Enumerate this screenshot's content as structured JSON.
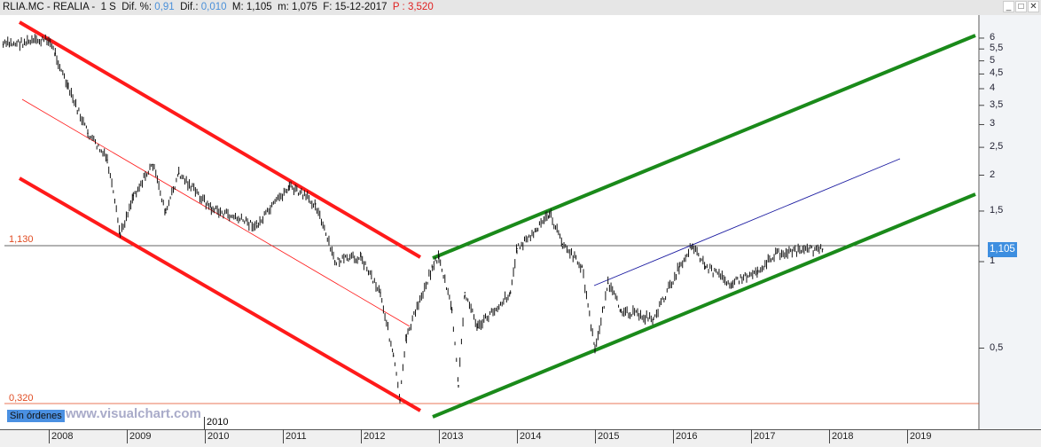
{
  "header": {
    "symbol": "RLIA.MC - REALIA -",
    "period": "1 S",
    "dif_pct_label": "Dif. %:",
    "dif_pct": "0,91",
    "dif_label": "Dif.:",
    "dif": "0,010",
    "max_label": "M:",
    "max": "1,105",
    "min_label": "m:",
    "min": "1,075",
    "date_label": "F:",
    "date": "15-12-2017",
    "p_label": "P :",
    "p": "3,520"
  },
  "window_buttons": {
    "minimize": "_",
    "maximize": "□",
    "close": "✕"
  },
  "levels": {
    "upper": "1,130",
    "lower": "0,320"
  },
  "last_price": "1,105",
  "status": {
    "orders": "Sin órdenes",
    "watermark": "www.visualchart.com",
    "stray_label": "2010"
  },
  "colors": {
    "up_channel": "#1a8a1a",
    "down_channel": "#ff1a1a",
    "blue_line": "#1a1aa0",
    "level_line": "#e04a20",
    "price_box": "#3d8ee0"
  },
  "chart_data": {
    "type": "line",
    "scale": "log",
    "y_ticks": [
      "6",
      "5,5",
      "5",
      "4,5",
      "4",
      "3,5",
      "3",
      "2,5",
      "2",
      "1,5",
      "1",
      "0,5"
    ],
    "x_ticks": [
      "2008",
      "2009",
      "2010",
      "2011",
      "2012",
      "2013",
      "2014",
      "2015",
      "2016",
      "2017",
      "2018",
      "2019"
    ],
    "series": [
      {
        "values": [
          [
            "2007-06",
            5.7
          ],
          [
            "2008-01",
            5.9
          ],
          [
            "2008-02",
            5.3
          ],
          [
            "2008-04",
            4.0
          ],
          [
            "2008-07",
            2.8
          ],
          [
            "2008-10",
            2.26
          ],
          [
            "2008-12",
            1.24
          ],
          [
            "2009-02",
            1.7
          ],
          [
            "2009-05",
            2.18
          ],
          [
            "2009-07",
            1.48
          ],
          [
            "2009-09",
            2.03
          ],
          [
            "2010-02",
            1.53
          ],
          [
            "2010-09",
            1.33
          ],
          [
            "2011-02",
            1.83
          ],
          [
            "2011-06",
            1.59
          ],
          [
            "2011-09",
            1.0
          ],
          [
            "2012-01",
            1.04
          ],
          [
            "2012-04",
            0.78
          ],
          [
            "2012-06",
            0.47
          ],
          [
            "2012-07",
            0.33
          ],
          [
            "2012-08",
            0.55
          ],
          [
            "2012-12",
            0.96
          ],
          [
            "2013-01",
            1.04
          ],
          [
            "2013-03",
            0.68
          ],
          [
            "2013-04",
            0.37
          ],
          [
            "2013-05",
            0.78
          ],
          [
            "2013-07",
            0.59
          ],
          [
            "2013-12",
            0.78
          ],
          [
            "2014-01",
            1.11
          ],
          [
            "2014-04",
            1.28
          ],
          [
            "2014-06",
            1.48
          ],
          [
            "2014-08",
            1.15
          ],
          [
            "2014-11",
            0.96
          ],
          [
            "2015-01",
            0.49
          ],
          [
            "2015-03",
            0.84
          ],
          [
            "2015-05",
            0.68
          ],
          [
            "2015-10",
            0.63
          ],
          [
            "2016-02",
            0.96
          ],
          [
            "2016-04",
            1.15
          ],
          [
            "2016-06",
            0.96
          ],
          [
            "2016-10",
            0.84
          ],
          [
            "2017-02",
            0.93
          ],
          [
            "2017-05",
            1.07
          ],
          [
            "2017-12",
            1.105
          ]
        ]
      }
    ],
    "horizontal_levels": [
      1.13,
      0.32
    ]
  }
}
